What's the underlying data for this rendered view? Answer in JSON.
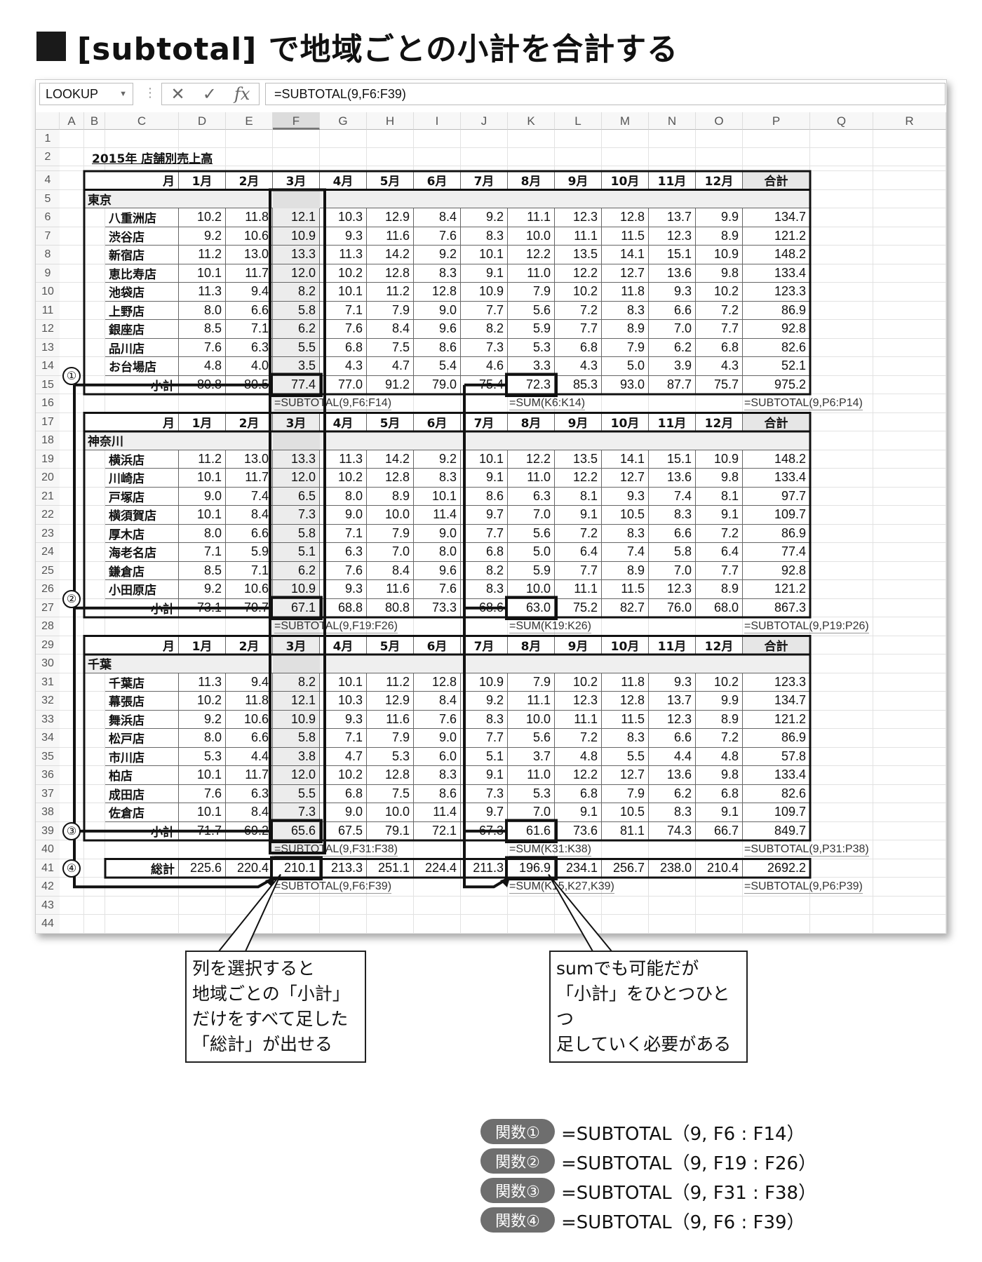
{
  "title": "[subtotal] で地域ごとの小計を合計する",
  "formula_bar": {
    "name_box": "LOOKUP",
    "cancel_icon": "✕",
    "enter_icon": "✓",
    "fx_label": "fx",
    "formula": "=SUBTOTAL(9,F6:F39)"
  },
  "columns": [
    "A",
    "B",
    "C",
    "D",
    "E",
    "F",
    "G",
    "H",
    "I",
    "J",
    "K",
    "L",
    "M",
    "N",
    "O",
    "P",
    "Q",
    "R"
  ],
  "selected_column": "F",
  "row_numbers": [
    "1",
    "2",
    "",
    "4",
    "5",
    "6",
    "7",
    "8",
    "9",
    "10",
    "11",
    "12",
    "13",
    "14",
    "15",
    "16",
    "17",
    "18",
    "19",
    "20",
    "21",
    "22",
    "23",
    "24",
    "25",
    "26",
    "27",
    "28",
    "29",
    "30",
    "31",
    "32",
    "33",
    "34",
    "35",
    "36",
    "37",
    "38",
    "39",
    "40",
    "41",
    "42",
    "43",
    "44"
  ],
  "sheet_title": "2015年 店舗別売上高",
  "header": {
    "month_label": "月",
    "months": [
      "1月",
      "2月",
      "3月",
      "4月",
      "5月",
      "6月",
      "7月",
      "8月",
      "9月",
      "10月",
      "11月",
      "12月"
    ],
    "total_label": "合計"
  },
  "sections": [
    {
      "region": "東京",
      "stores": [
        {
          "name": "八重洲店",
          "values": [
            "10.2",
            "11.8",
            "12.1",
            "10.3",
            "12.9",
            "8.4",
            "9.2",
            "11.1",
            "12.3",
            "12.8",
            "13.7",
            "9.9",
            "134.7"
          ]
        },
        {
          "name": "渋谷店",
          "values": [
            "9.2",
            "10.6",
            "10.9",
            "9.3",
            "11.6",
            "7.6",
            "8.3",
            "10.0",
            "11.1",
            "11.5",
            "12.3",
            "8.9",
            "121.2"
          ]
        },
        {
          "name": "新宿店",
          "values": [
            "11.2",
            "13.0",
            "13.3",
            "11.3",
            "14.2",
            "9.2",
            "10.1",
            "12.2",
            "13.5",
            "14.1",
            "15.1",
            "10.9",
            "148.2"
          ]
        },
        {
          "name": "恵比寿店",
          "values": [
            "10.1",
            "11.7",
            "12.0",
            "10.2",
            "12.8",
            "8.3",
            "9.1",
            "11.0",
            "12.2",
            "12.7",
            "13.6",
            "9.8",
            "133.4"
          ]
        },
        {
          "name": "池袋店",
          "values": [
            "11.3",
            "9.4",
            "8.2",
            "10.1",
            "11.2",
            "12.8",
            "10.9",
            "7.9",
            "10.2",
            "11.8",
            "9.3",
            "10.2",
            "123.3"
          ]
        },
        {
          "name": "上野店",
          "values": [
            "8.0",
            "6.6",
            "5.8",
            "7.1",
            "7.9",
            "9.0",
            "7.7",
            "5.6",
            "7.2",
            "8.3",
            "6.6",
            "7.2",
            "86.9"
          ]
        },
        {
          "name": "銀座店",
          "values": [
            "8.5",
            "7.1",
            "6.2",
            "7.6",
            "8.4",
            "9.6",
            "8.2",
            "5.9",
            "7.7",
            "8.9",
            "7.0",
            "7.7",
            "92.8"
          ]
        },
        {
          "name": "品川店",
          "values": [
            "7.6",
            "6.3",
            "5.5",
            "6.8",
            "7.5",
            "8.6",
            "7.3",
            "5.3",
            "6.8",
            "7.9",
            "6.2",
            "6.8",
            "82.6"
          ]
        },
        {
          "name": "お台場店",
          "values": [
            "4.8",
            "4.0",
            "3.5",
            "4.3",
            "4.7",
            "5.4",
            "4.6",
            "3.3",
            "4.3",
            "5.0",
            "3.9",
            "4.3",
            "52.1"
          ]
        }
      ],
      "subtotal": {
        "label": "小計",
        "values": [
          "80.8",
          "80.5",
          "77.4",
          "77.0",
          "91.2",
          "79.0",
          "75.4",
          "72.3",
          "85.3",
          "93.0",
          "87.7",
          "75.7",
          "975.2"
        ]
      },
      "formulas": {
        "f": "=SUBTOTAL(9,F6:F14)",
        "k": "=SUM(K6:K14)",
        "p": "=SUBTOTAL(9,P6:P14)"
      },
      "marker": "①"
    },
    {
      "region": "神奈川",
      "stores": [
        {
          "name": "横浜店",
          "values": [
            "11.2",
            "13.0",
            "13.3",
            "11.3",
            "14.2",
            "9.2",
            "10.1",
            "12.2",
            "13.5",
            "14.1",
            "15.1",
            "10.9",
            "148.2"
          ]
        },
        {
          "name": "川崎店",
          "values": [
            "10.1",
            "11.7",
            "12.0",
            "10.2",
            "12.8",
            "8.3",
            "9.1",
            "11.0",
            "12.2",
            "12.7",
            "13.6",
            "9.8",
            "133.4"
          ]
        },
        {
          "name": "戸塚店",
          "values": [
            "9.0",
            "7.4",
            "6.5",
            "8.0",
            "8.9",
            "10.1",
            "8.6",
            "6.3",
            "8.1",
            "9.3",
            "7.4",
            "8.1",
            "97.7"
          ]
        },
        {
          "name": "横須賀店",
          "values": [
            "10.1",
            "8.4",
            "7.3",
            "9.0",
            "10.0",
            "11.4",
            "9.7",
            "7.0",
            "9.1",
            "10.5",
            "8.3",
            "9.1",
            "109.7"
          ]
        },
        {
          "name": "厚木店",
          "values": [
            "8.0",
            "6.6",
            "5.8",
            "7.1",
            "7.9",
            "9.0",
            "7.7",
            "5.6",
            "7.2",
            "8.3",
            "6.6",
            "7.2",
            "86.9"
          ]
        },
        {
          "name": "海老名店",
          "values": [
            "7.1",
            "5.9",
            "5.1",
            "6.3",
            "7.0",
            "8.0",
            "6.8",
            "5.0",
            "6.4",
            "7.4",
            "5.8",
            "6.4",
            "77.4"
          ]
        },
        {
          "name": "鎌倉店",
          "values": [
            "8.5",
            "7.1",
            "6.2",
            "7.6",
            "8.4",
            "9.6",
            "8.2",
            "5.9",
            "7.7",
            "8.9",
            "7.0",
            "7.7",
            "92.8"
          ]
        },
        {
          "name": "小田原店",
          "values": [
            "9.2",
            "10.6",
            "10.9",
            "9.3",
            "11.6",
            "7.6",
            "8.3",
            "10.0",
            "11.1",
            "11.5",
            "12.3",
            "8.9",
            "121.2"
          ]
        }
      ],
      "subtotal": {
        "label": "小計",
        "values": [
          "73.1",
          "70.7",
          "67.1",
          "68.8",
          "80.8",
          "73.3",
          "68.6",
          "63.0",
          "75.2",
          "82.7",
          "76.0",
          "68.0",
          "867.3"
        ]
      },
      "formulas": {
        "f": "=SUBTOTAL(9,F19:F26)",
        "k": "=SUM(K19:K26)",
        "p": "=SUBTOTAL(9,P19:P26)"
      },
      "marker": "②"
    },
    {
      "region": "千葉",
      "stores": [
        {
          "name": "千葉店",
          "values": [
            "11.3",
            "9.4",
            "8.2",
            "10.1",
            "11.2",
            "12.8",
            "10.9",
            "7.9",
            "10.2",
            "11.8",
            "9.3",
            "10.2",
            "123.3"
          ]
        },
        {
          "name": "幕張店",
          "values": [
            "10.2",
            "11.8",
            "12.1",
            "10.3",
            "12.9",
            "8.4",
            "9.2",
            "11.1",
            "12.3",
            "12.8",
            "13.7",
            "9.9",
            "134.7"
          ]
        },
        {
          "name": "舞浜店",
          "values": [
            "9.2",
            "10.6",
            "10.9",
            "9.3",
            "11.6",
            "7.6",
            "8.3",
            "10.0",
            "11.1",
            "11.5",
            "12.3",
            "8.9",
            "121.2"
          ]
        },
        {
          "name": "松戸店",
          "values": [
            "8.0",
            "6.6",
            "5.8",
            "7.1",
            "7.9",
            "9.0",
            "7.7",
            "5.6",
            "7.2",
            "8.3",
            "6.6",
            "7.2",
            "86.9"
          ]
        },
        {
          "name": "市川店",
          "values": [
            "5.3",
            "4.4",
            "3.8",
            "4.7",
            "5.3",
            "6.0",
            "5.1",
            "3.7",
            "4.8",
            "5.5",
            "4.4",
            "4.8",
            "57.8"
          ]
        },
        {
          "name": "柏店",
          "values": [
            "10.1",
            "11.7",
            "12.0",
            "10.2",
            "12.8",
            "8.3",
            "9.1",
            "11.0",
            "12.2",
            "12.7",
            "13.6",
            "9.8",
            "133.4"
          ]
        },
        {
          "name": "成田店",
          "values": [
            "7.6",
            "6.3",
            "5.5",
            "6.8",
            "7.5",
            "8.6",
            "7.3",
            "5.3",
            "6.8",
            "7.9",
            "6.2",
            "6.8",
            "82.6"
          ]
        },
        {
          "name": "佐倉店",
          "values": [
            "10.1",
            "8.4",
            "7.3",
            "9.0",
            "10.0",
            "11.4",
            "9.7",
            "7.0",
            "9.1",
            "10.5",
            "8.3",
            "9.1",
            "109.7"
          ]
        }
      ],
      "subtotal": {
        "label": "小計",
        "values": [
          "71.7",
          "69.2",
          "65.6",
          "67.5",
          "79.1",
          "72.1",
          "67.3",
          "61.6",
          "73.6",
          "81.1",
          "74.3",
          "66.7",
          "849.7"
        ]
      },
      "formulas": {
        "f": "=SUBTOTAL(9,F31:F38)",
        "k": "=SUM(K31:K38)",
        "p": "=SUBTOTAL(9,P31:P38)"
      },
      "marker": "③"
    }
  ],
  "grand_total": {
    "label": "総計",
    "values": [
      "225.6",
      "220.4",
      "210.1",
      "213.3",
      "251.1",
      "224.4",
      "211.3",
      "196.9",
      "234.1",
      "256.7",
      "238.0",
      "210.4",
      "2692.2"
    ],
    "formulas": {
      "f": "=SUBTOTAL(9,F6:F39)",
      "k": "=SUM(K15,K27,K39)",
      "p": "=SUBTOTAL(9,P6:P39)"
    },
    "marker": "④"
  },
  "callouts": {
    "left": [
      "列を選択すると",
      "地域ごとの「小計」",
      "だけをすべて足した",
      "「総計」が出せる"
    ],
    "right": [
      "sumでも可能だが",
      "「小計」をひとつひとつ",
      "足していく必要がある"
    ]
  },
  "legend": [
    {
      "label": "関数①",
      "formula": "=SUBTOTAL（9, F6 : F14）"
    },
    {
      "label": "関数②",
      "formula": "=SUBTOTAL（9, F19 : F26）"
    },
    {
      "label": "関数③",
      "formula": "=SUBTOTAL（9, F31 : F38）"
    },
    {
      "label": "関数④",
      "formula": "=SUBTOTAL（9, F6 : F39）"
    }
  ],
  "colors": {
    "ink": "#111111",
    "highlight_column": "#e6e6e6",
    "legend_pill": "#6e6e6e"
  }
}
